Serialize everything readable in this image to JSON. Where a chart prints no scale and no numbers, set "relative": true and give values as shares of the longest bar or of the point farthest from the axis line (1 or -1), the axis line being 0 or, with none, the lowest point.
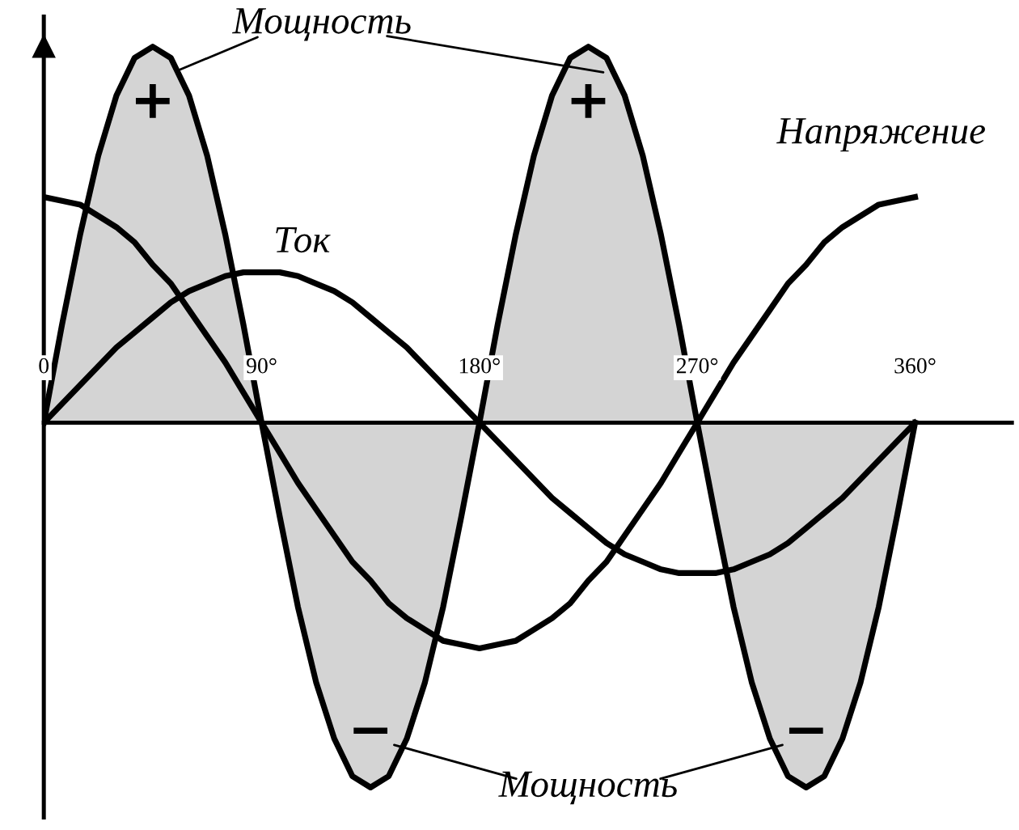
{
  "chart_data": {
    "type": "line",
    "relative": true,
    "legend": false,
    "grid": false,
    "x": [
      0,
      7.5,
      15,
      22.5,
      30,
      37.5,
      45,
      52.5,
      60,
      67.5,
      75,
      82.5,
      90,
      97.5,
      105,
      112.5,
      120,
      127.5,
      135,
      142.5,
      150,
      157.5,
      165,
      172.5,
      180,
      187.5,
      195,
      202.5,
      210,
      217.5,
      225,
      232.5,
      240,
      247.5,
      255,
      262.5,
      270,
      277.5,
      285,
      292.5,
      300,
      307.5,
      315,
      322.5,
      330,
      337.5,
      345,
      352.5,
      360
    ],
    "xlim": [
      0,
      400
    ],
    "xticks": [
      {
        "value": 0,
        "label": "0"
      },
      {
        "value": 90,
        "label": "90°"
      },
      {
        "value": 180,
        "label": "180°"
      },
      {
        "value": 270,
        "label": "270°"
      },
      {
        "value": 360,
        "label": "360°"
      }
    ],
    "series": [
      {
        "name": "Мощность",
        "type": "area",
        "color": "#d4d4d4",
        "values": [
          0,
          0.26,
          0.5,
          0.71,
          0.87,
          0.97,
          1,
          0.97,
          0.87,
          0.71,
          0.5,
          0.26,
          0,
          -0.25,
          -0.49,
          -0.69,
          -0.84,
          -0.94,
          -0.97,
          -0.94,
          -0.84,
          -0.69,
          -0.49,
          -0.25,
          0,
          0.26,
          0.5,
          0.71,
          0.87,
          0.97,
          1,
          0.97,
          0.87,
          0.71,
          0.5,
          0.26,
          0,
          -0.25,
          -0.49,
          -0.69,
          -0.84,
          -0.94,
          -0.97,
          -0.94,
          -0.84,
          -0.69,
          -0.49,
          -0.25,
          0
        ]
      },
      {
        "name": "Напряжение",
        "type": "line",
        "color": "#000000",
        "values": [
          0.6,
          0.59,
          0.58,
          0.55,
          0.52,
          0.48,
          0.42,
          0.37,
          0.3,
          0.23,
          0.16,
          0.08,
          0,
          -0.08,
          -0.16,
          -0.23,
          -0.3,
          -0.37,
          -0.42,
          -0.48,
          -0.52,
          -0.55,
          -0.58,
          -0.59,
          -0.6,
          -0.59,
          -0.58,
          -0.55,
          -0.52,
          -0.48,
          -0.42,
          -0.37,
          -0.3,
          -0.23,
          -0.16,
          -0.08,
          0,
          0.08,
          0.16,
          0.23,
          0.3,
          0.37,
          0.42,
          0.48,
          0.52,
          0.55,
          0.58,
          0.59,
          0.6
        ]
      },
      {
        "name": "Ток",
        "type": "line",
        "color": "#000000",
        "values": [
          0,
          0.05,
          0.1,
          0.15,
          0.2,
          0.24,
          0.28,
          0.32,
          0.35,
          0.37,
          0.39,
          0.4,
          0.4,
          0.4,
          0.39,
          0.37,
          0.35,
          0.32,
          0.28,
          0.24,
          0.2,
          0.15,
          0.1,
          0.05,
          0,
          -0.05,
          -0.1,
          -0.15,
          -0.2,
          -0.24,
          -0.28,
          -0.32,
          -0.35,
          -0.37,
          -0.39,
          -0.4,
          -0.4,
          -0.4,
          -0.39,
          -0.37,
          -0.35,
          -0.32,
          -0.28,
          -0.24,
          -0.2,
          -0.15,
          -0.1,
          -0.05,
          0
        ]
      }
    ],
    "annotations": [
      "+",
      "+",
      "−",
      "−",
      "Мощность"
    ]
  }
}
